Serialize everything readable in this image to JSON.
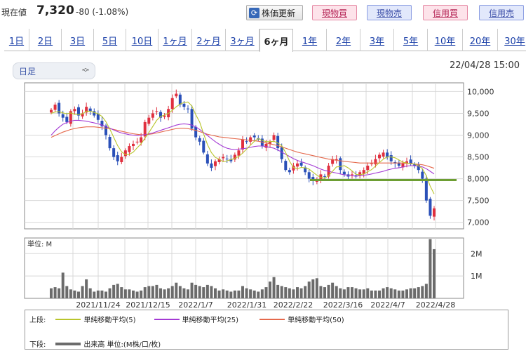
{
  "header": {
    "price_label": "現在値",
    "price": "7,320",
    "change": "-80 (-1.08%)",
    "refresh_label": "株価更新",
    "refresh_icon": "refresh-icon",
    "trade_buttons": [
      "現物買",
      "現物売",
      "信用買",
      "信用売"
    ]
  },
  "tabs": [
    "1日",
    "2日",
    "3日",
    "5日",
    "10日",
    "1ヶ月",
    "2ヶ月",
    "3ヶ月",
    "6ヶ月",
    "1年",
    "2年",
    "3年",
    "5年",
    "10年",
    "20年",
    "30年"
  ],
  "active_tab": "6ヶ月",
  "select": {
    "value": "日足"
  },
  "datetime": "22/04/28 15:00",
  "colors": {
    "up": "#e0303f",
    "down": "#2a50b8",
    "ma5": "#b9c52c",
    "ma25": "#a43ad4",
    "ma50": "#e5694c",
    "support": "#6d9e33",
    "volume": "#6b6b6b"
  },
  "chart_data": {
    "type": "candlestick",
    "x_ticks": [
      "2021/11/24",
      "2021/12/15",
      "2022/1/7",
      "2022/1/31",
      "2022/2/22",
      "2022/3/16",
      "2022/4/7",
      "2022/4/28"
    ],
    "y_ticks": [
      "10,000",
      "9,500",
      "9,000",
      "8,500",
      "8,000",
      "7,500",
      "7,000"
    ],
    "ylim": [
      6850,
      10200
    ],
    "support_level": 7970,
    "close": [
      9580,
      9700,
      9500,
      9400,
      9300,
      9550,
      9600,
      9450,
      9500,
      9650,
      9550,
      9450,
      9350,
      9200,
      9000,
      8700,
      8500,
      8400,
      8500,
      8650,
      8750,
      8800,
      8850,
      8950,
      9300,
      9400,
      9500,
      9550,
      9400,
      9450,
      9600,
      9850,
      9950,
      9700,
      9650,
      9600,
      9150,
      8950,
      8850,
      8600,
      8350,
      8250,
      8400,
      8450,
      8500,
      8450,
      8400,
      8550,
      8650,
      8900,
      8850,
      8950,
      8950,
      8900,
      8750,
      8800,
      8850,
      9000,
      8700,
      8450,
      8200,
      8150,
      8300,
      8350,
      8300,
      8150,
      8000,
      7950,
      7950,
      8100,
      8050,
      8300,
      8450,
      8450,
      8200,
      8100,
      8050,
      8100,
      8050,
      8150,
      8200,
      8300,
      8350,
      8450,
      8550,
      8600,
      8500,
      8400,
      8350,
      8300,
      8350,
      8400,
      8350,
      8300,
      8200,
      8000,
      7500,
      7150,
      7320
    ],
    "ma5": [
      9500,
      9530,
      9540,
      9510,
      9490,
      9510,
      9480,
      9470,
      9490,
      9550,
      9550,
      9520,
      9490,
      9430,
      9310,
      9140,
      8950,
      8760,
      8620,
      8550,
      8560,
      8610,
      8710,
      8800,
      8930,
      9060,
      9200,
      9340,
      9430,
      9460,
      9500,
      9570,
      9650,
      9710,
      9750,
      9760,
      9670,
      9470,
      9300,
      9030,
      8780,
      8600,
      8490,
      8450,
      8390,
      8410,
      8440,
      8470,
      8510,
      8590,
      8680,
      8770,
      8860,
      8920,
      8880,
      8850,
      8850,
      8860,
      8820,
      8760,
      8600,
      8400,
      8260,
      8230,
      8260,
      8250,
      8220,
      8150,
      8080,
      8030,
      8010,
      8070,
      8170,
      8270,
      8280,
      8300,
      8250,
      8180,
      8100,
      8090,
      8110,
      8160,
      8210,
      8290,
      8370,
      8450,
      8500,
      8500,
      8480,
      8430,
      8380,
      8360,
      8340,
      8340,
      8300,
      8230,
      8070,
      7830,
      7650
    ],
    "ma25": [
      9000,
      9100,
      9180,
      9250,
      9290,
      9320,
      9340,
      9340,
      9330,
      9320,
      9300,
      9280,
      9260,
      9230,
      9200,
      9160,
      9120,
      9080,
      9050,
      9030,
      9010,
      9000,
      8990,
      9000,
      9010,
      9030,
      9050,
      9080,
      9110,
      9140,
      9170,
      9200,
      9230,
      9250,
      9260,
      9250,
      9230,
      9190,
      9130,
      9060,
      8990,
      8920,
      8850,
      8790,
      8740,
      8700,
      8680,
      8670,
      8680,
      8690,
      8700,
      8720,
      8740,
      8750,
      8750,
      8740,
      8720,
      8700,
      8660,
      8610,
      8560,
      8510,
      8460,
      8420,
      8390,
      8360,
      8330,
      8300,
      8260,
      8220,
      8190,
      8170,
      8150,
      8130,
      8110,
      8090,
      8080,
      8070,
      8060,
      8070,
      8080,
      8090,
      8110,
      8130,
      8150,
      8170,
      8200,
      8220,
      8240,
      8250,
      8270,
      8290,
      8300,
      8300,
      8290,
      8270,
      8230,
      8170,
      8110
    ],
    "ma50": [
      8950,
      8990,
      9030,
      9070,
      9100,
      9130,
      9150,
      9170,
      9180,
      9190,
      9190,
      9190,
      9180,
      9170,
      9160,
      9150,
      9130,
      9110,
      9090,
      9070,
      9050,
      9030,
      9020,
      9010,
      9010,
      9020,
      9030,
      9050,
      9070,
      9090,
      9110,
      9130,
      9150,
      9160,
      9160,
      9150,
      9130,
      9110,
      9080,
      9050,
      9020,
      9000,
      8980,
      8960,
      8950,
      8940,
      8930,
      8920,
      8910,
      8900,
      8890,
      8880,
      8870,
      8860,
      8840,
      8820,
      8800,
      8780,
      8760,
      8730,
      8700,
      8670,
      8640,
      8610,
      8590,
      8570,
      8550,
      8530,
      8510,
      8490,
      8470,
      8450,
      8440,
      8420,
      8410,
      8400,
      8390,
      8380,
      8370,
      8360,
      8360,
      8360,
      8360,
      8360,
      8360,
      8360,
      8360,
      8360,
      8360,
      8360,
      8360,
      8350,
      8350,
      8340,
      8330,
      8320,
      8300,
      8270,
      8240
    ],
    "volume_unit_label": "単位: M",
    "volume_y_ticks": [
      "2M",
      "1M"
    ],
    "volume_ylim": [
      0,
      2.7
    ],
    "volume": [
      0.45,
      0.5,
      0.45,
      1.15,
      0.55,
      0.4,
      0.35,
      0.3,
      0.55,
      0.85,
      0.45,
      0.3,
      0.35,
      0.35,
      0.3,
      0.45,
      0.6,
      0.65,
      0.5,
      0.4,
      0.4,
      0.35,
      0.3,
      0.35,
      0.5,
      0.55,
      0.55,
      0.6,
      0.45,
      0.4,
      0.45,
      0.55,
      0.7,
      0.55,
      0.45,
      0.4,
      0.7,
      0.6,
      0.55,
      0.5,
      0.6,
      0.55,
      0.45,
      0.35,
      0.4,
      0.35,
      0.3,
      0.35,
      0.35,
      0.55,
      0.45,
      0.4,
      0.35,
      0.3,
      0.4,
      0.5,
      0.75,
      0.95,
      0.6,
      0.55,
      0.5,
      0.45,
      0.4,
      0.5,
      0.45,
      0.55,
      0.75,
      0.85,
      0.9,
      0.55,
      0.5,
      0.6,
      0.7,
      0.55,
      0.45,
      0.4,
      0.5,
      0.5,
      0.45,
      0.4,
      0.4,
      0.45,
      0.35,
      0.35,
      0.35,
      0.45,
      0.5,
      0.45,
      0.4,
      0.35,
      0.35,
      0.4,
      0.45,
      0.45,
      0.5,
      0.55,
      0.65,
      2.65,
      2.2
    ]
  },
  "legend": {
    "upper_label": "上段:",
    "lower_label": "下段:",
    "items": [
      "単純移動平均(5)",
      "単純移動平均(25)",
      "単純移動平均(50)"
    ],
    "volume_item": "出来高 単位:(M株/口/枚)"
  }
}
